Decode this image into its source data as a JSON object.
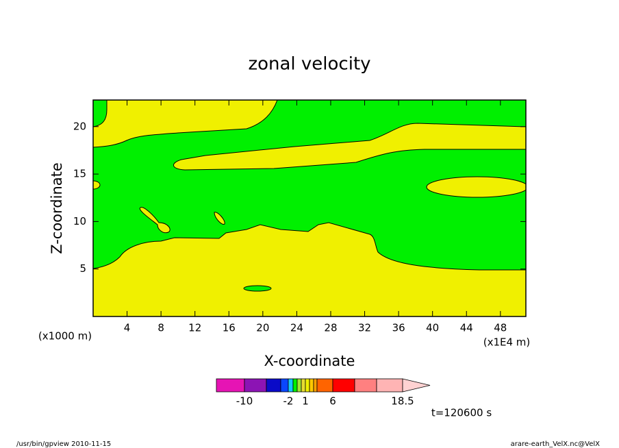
{
  "chart_data": {
    "type": "contour",
    "title": "zonal velocity",
    "xlabel": "X-coordinate",
    "ylabel": "Z-coordinate",
    "x_unit": "(x1E4 m)",
    "y_unit": "(x1000 m)",
    "xlim": [
      0,
      51
    ],
    "xticks": [
      4,
      8,
      12,
      16,
      20,
      24,
      28,
      32,
      36,
      40,
      44,
      48
    ],
    "ylim": [
      0,
      22.8
    ],
    "yticks": [
      5,
      10,
      15,
      20
    ],
    "colorbar_colors": [
      "#e614b4",
      "#8c14b4",
      "#0a0ac8",
      "#0a46ff",
      "#14c8ff",
      "#00f000",
      "#a0e632",
      "#e6dc32",
      "#f0f000",
      "#ffc800",
      "#ffa000",
      "#ff6400",
      "#ff0000",
      "#ff8080",
      "#ffb4b4",
      "#ffd2d2"
    ],
    "colorbar_ticks": [
      -10,
      -2,
      1,
      6,
      18.5
    ],
    "time_label": "t=120600 s",
    "footer_left": "/usr/bin/gpview   2010-11-15",
    "footer_right": "arare-earth_VelX.nc@VelX"
  }
}
